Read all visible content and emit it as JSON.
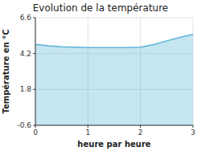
{
  "chart_data": {
    "type": "area",
    "title": "Evolution de la température",
    "xlabel": "heure par heure",
    "ylabel": "Température en °C",
    "x": [
      0,
      0.25,
      0.5,
      0.75,
      1.0,
      1.25,
      1.5,
      1.75,
      2.0,
      2.25,
      2.5,
      2.75,
      3.0
    ],
    "values": [
      4.82,
      4.72,
      4.65,
      4.62,
      4.6,
      4.6,
      4.6,
      4.6,
      4.62,
      4.8,
      5.05,
      5.28,
      5.48
    ],
    "color": "#5ab4d6",
    "xlim": [
      0,
      3
    ],
    "ylim": [
      -0.6,
      6.6
    ],
    "xticks": [
      0,
      1,
      2,
      3
    ],
    "yticks": [
      -0.6,
      1.8,
      4.2,
      6.6
    ],
    "grid": true
  }
}
